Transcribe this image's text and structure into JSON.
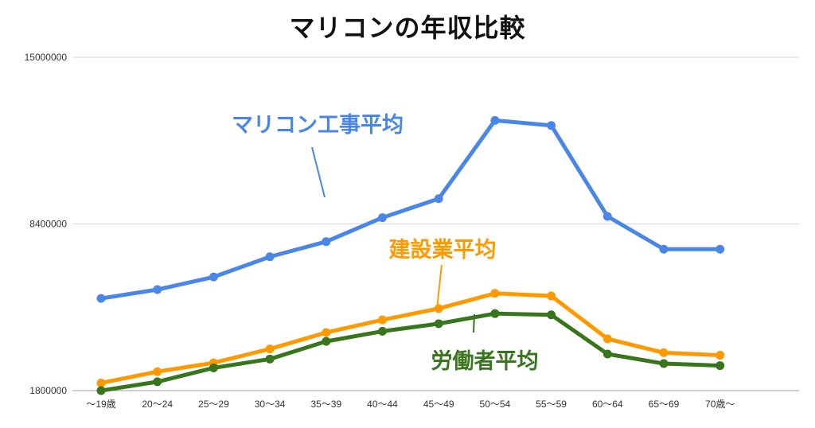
{
  "chart_data": {
    "type": "line",
    "title": "マリコンの年収比較",
    "xlabel": "",
    "ylabel": "",
    "categories": [
      "〜19歳",
      "20〜24",
      "25〜29",
      "30〜34",
      "35〜39",
      "40〜44",
      "45〜49",
      "50〜54",
      "55〜59",
      "60〜64",
      "65〜69",
      "70歳〜"
    ],
    "yticks": [
      "1800000",
      "8400000",
      "15000000"
    ],
    "ylim": [
      1800000,
      15000000
    ],
    "grid": true,
    "legend": "none",
    "series": [
      {
        "name": "マリコン工事平均",
        "color": "#4a86e8",
        "values": [
          5450000,
          5800000,
          6300000,
          7100000,
          7700000,
          8650000,
          9400000,
          12500000,
          12300000,
          8700000,
          7400000,
          7400000
        ]
      },
      {
        "name": "建設業平均",
        "color": "#ff9900",
        "values": [
          2100000,
          2550000,
          2900000,
          3450000,
          4100000,
          4600000,
          5050000,
          5650000,
          5550000,
          3850000,
          3300000,
          3200000
        ]
      },
      {
        "name": "労働者平均",
        "color": "#38761d",
        "values": [
          1800000,
          2150000,
          2700000,
          3050000,
          3750000,
          4150000,
          4450000,
          4850000,
          4800000,
          3250000,
          2870000,
          2790000
        ]
      }
    ]
  }
}
